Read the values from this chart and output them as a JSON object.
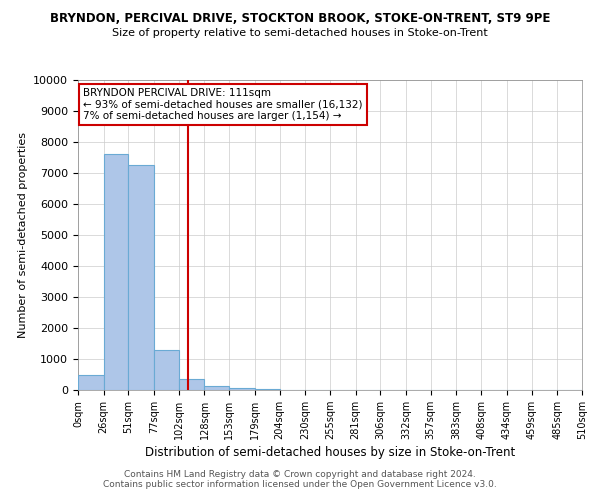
{
  "title1": "BRYNDON, PERCIVAL DRIVE, STOCKTON BROOK, STOKE-ON-TRENT, ST9 9PE",
  "title2": "Size of property relative to semi-detached houses in Stoke-on-Trent",
  "xlabel": "Distribution of semi-detached houses by size in Stoke-on-Trent",
  "ylabel": "Number of semi-detached properties",
  "footer1": "Contains HM Land Registry data © Crown copyright and database right 2024.",
  "footer2": "Contains public sector information licensed under the Open Government Licence v3.0.",
  "annotation_title": "BRYNDON PERCIVAL DRIVE: 111sqm",
  "annotation_line2": "← 93% of semi-detached houses are smaller (16,132)",
  "annotation_line3": "7% of semi-detached houses are larger (1,154) →",
  "property_size": 111,
  "bar_color": "#aec6e8",
  "bar_edge_color": "#6aaad4",
  "vline_color": "#cc0000",
  "annotation_box_color": "#cc0000",
  "ylim": [
    0,
    10000
  ],
  "yticks": [
    0,
    1000,
    2000,
    3000,
    4000,
    5000,
    6000,
    7000,
    8000,
    9000,
    10000
  ],
  "bin_edges": [
    0,
    26,
    51,
    77,
    102,
    128,
    153,
    179,
    204,
    230,
    255,
    281,
    306,
    332,
    357,
    383,
    408,
    434,
    459,
    485,
    510
  ],
  "bin_counts": [
    500,
    7600,
    7250,
    1300,
    350,
    130,
    60,
    20,
    10,
    5,
    3,
    2,
    2,
    1,
    1,
    0,
    0,
    0,
    0,
    0
  ]
}
